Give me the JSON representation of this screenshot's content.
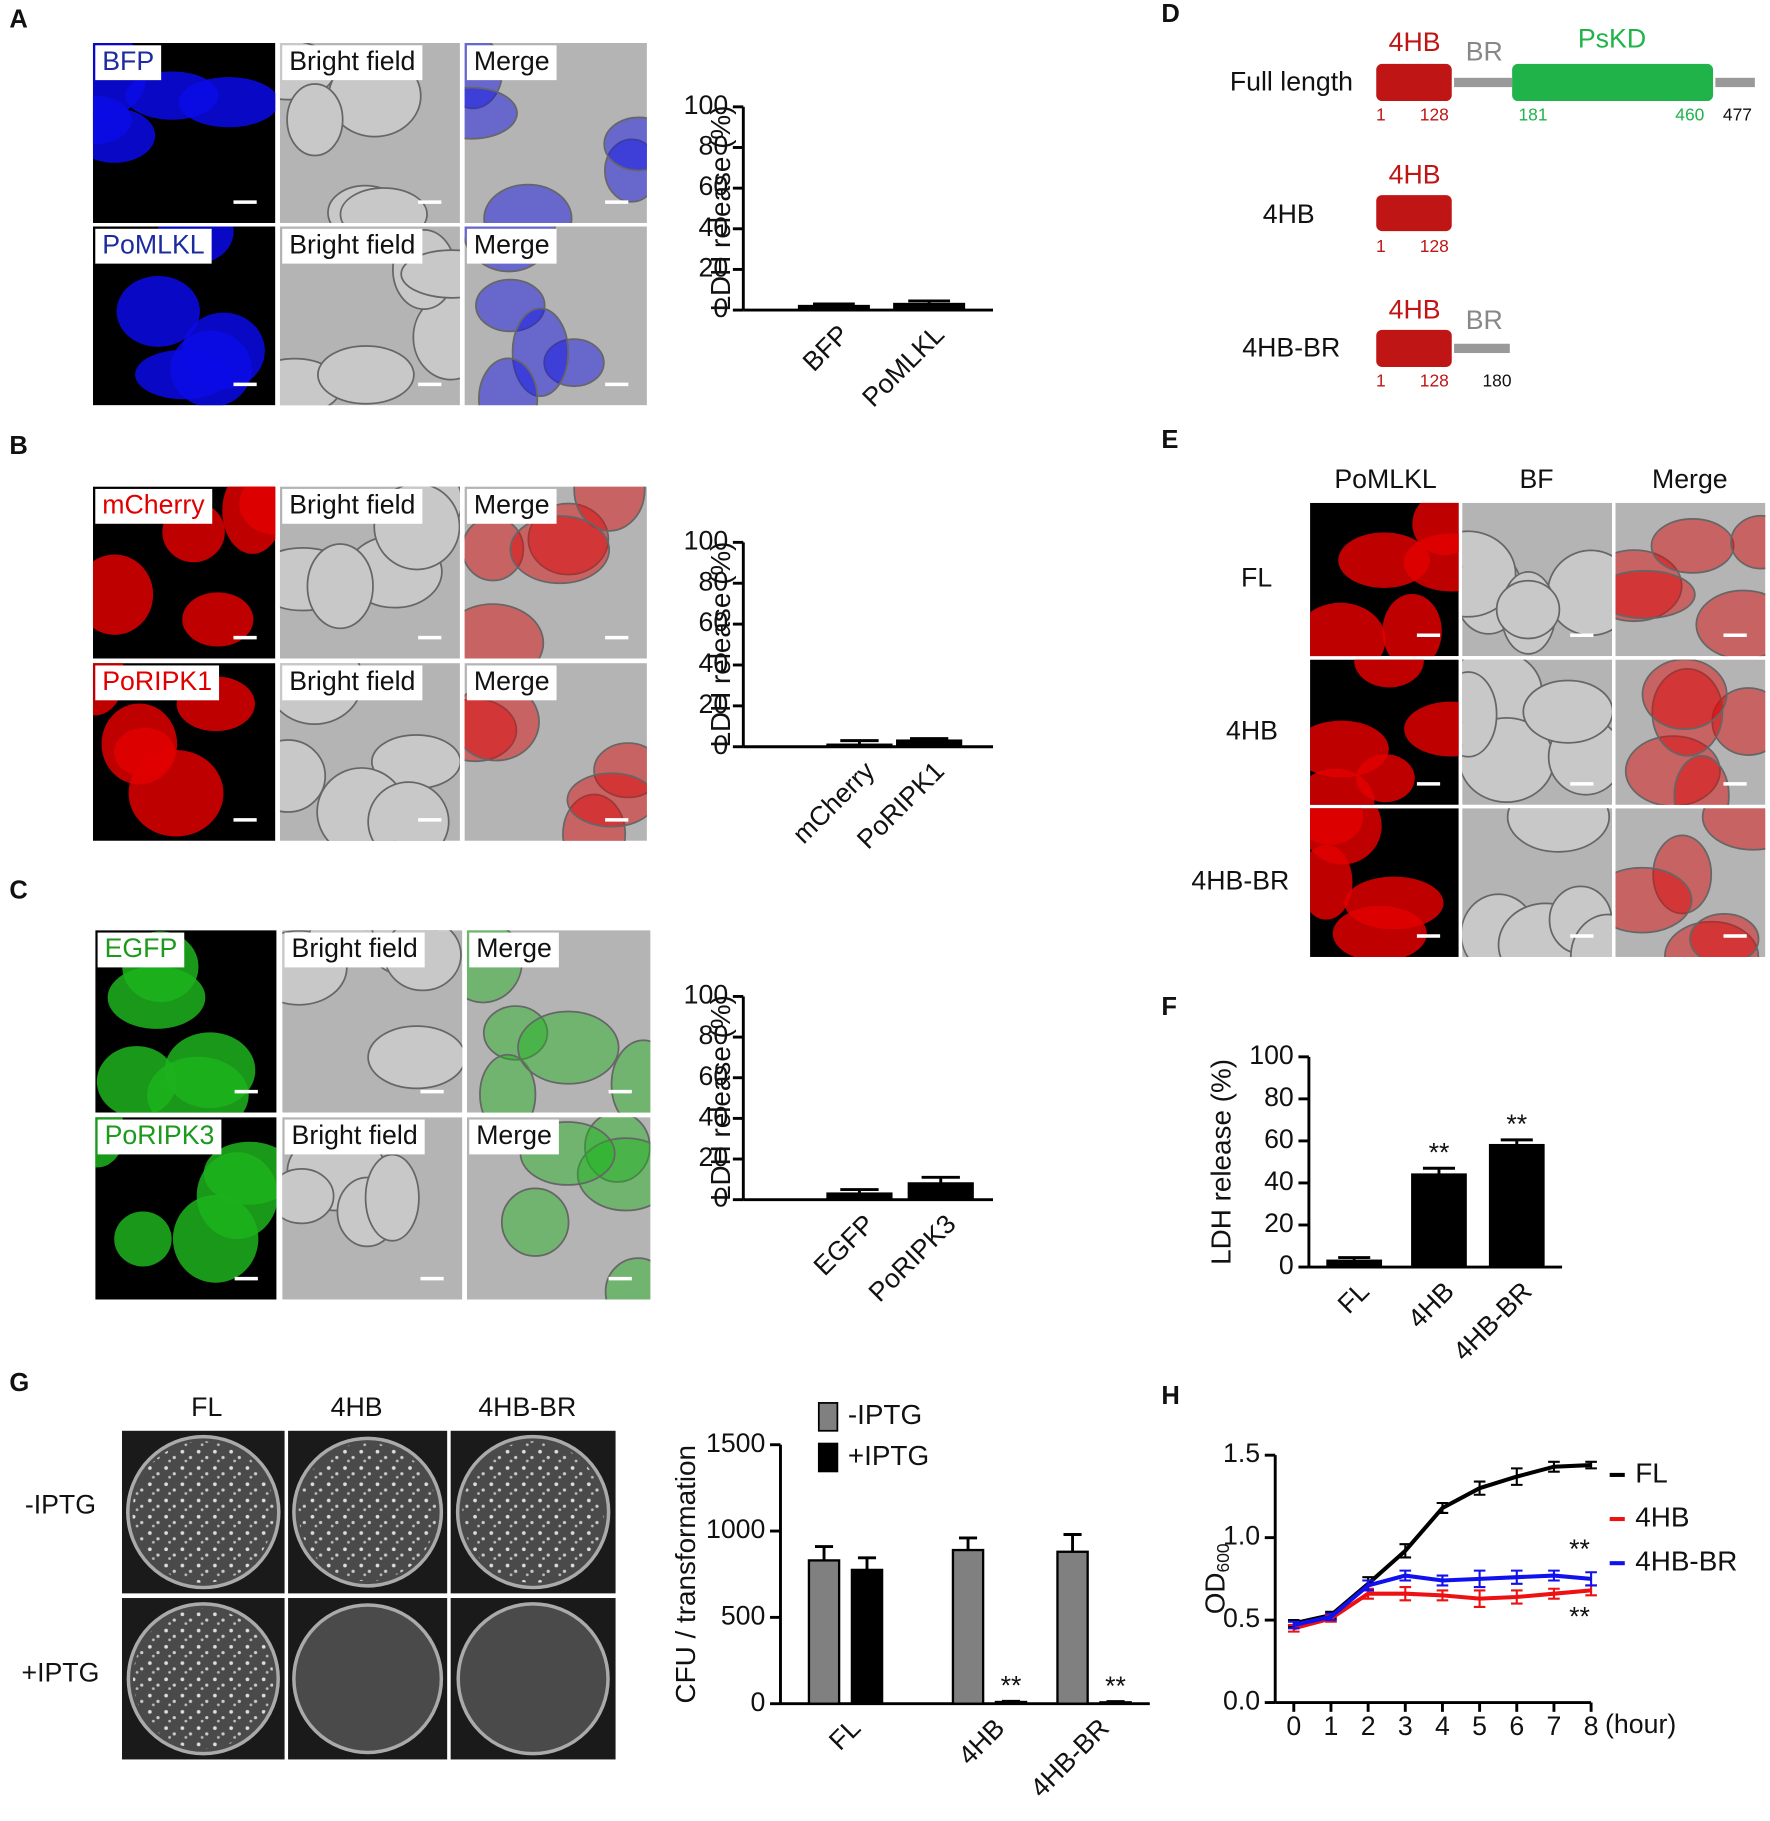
{
  "panel_labels": [
    "A",
    "B",
    "C",
    "D",
    "E",
    "F",
    "G",
    "H"
  ],
  "images": {
    "A": [
      [
        "BFP",
        "Bright field",
        "Merge"
      ],
      [
        "PoMLKL",
        "Bright field",
        "Merge"
      ]
    ],
    "B": [
      [
        "mCherry",
        "Bright field",
        "Merge"
      ],
      [
        "PoRIPK1",
        "Bright field",
        "Merge"
      ]
    ],
    "C": [
      [
        "EGFP",
        "Bright field",
        "Merge"
      ],
      [
        "PoRIPK3",
        "Bright field",
        "Merge"
      ]
    ]
  },
  "diagram": {
    "rows": [
      {
        "label": "Full length",
        "domains": [
          "4HB",
          "BR",
          "PsKD"
        ],
        "numbers": [
          1,
          128,
          181,
          460,
          477
        ]
      },
      {
        "label": "4HB",
        "domains": [
          "4HB"
        ],
        "numbers": [
          1,
          128
        ]
      },
      {
        "label": "4HB-BR",
        "domains": [
          "4HB",
          "BR"
        ],
        "numbers": [
          1,
          128,
          180
        ]
      }
    ]
  },
  "panel_e": {
    "columns": [
      "PoMLKL",
      "BF",
      "Merge"
    ],
    "rows": [
      "FL",
      "4HB",
      "4HB-BR"
    ]
  },
  "panel_g": {
    "columns": [
      "FL",
      "4HB",
      "4HB-BR"
    ],
    "rows": [
      "-IPTG",
      "+IPTG"
    ]
  },
  "chart_data": [
    {
      "type": "bar",
      "categories": [
        "BFP",
        "PoMLKL"
      ],
      "values": [
        2,
        3
      ],
      "errors": [
        1,
        1.5
      ],
      "color": "#000000",
      "ylim": [
        0,
        100
      ],
      "yticks": [
        0,
        20,
        40,
        60,
        80,
        100
      ],
      "ylabel": "LDH release (%)"
    },
    {
      "type": "bar",
      "categories": [
        "mCherry",
        "PoRIPK1"
      ],
      "values": [
        1,
        3
      ],
      "errors": [
        2,
        1
      ],
      "color": "#000000",
      "ylim": [
        0,
        100
      ],
      "yticks": [
        0,
        20,
        40,
        60,
        80,
        100
      ],
      "ylabel": "LDH release (%)"
    },
    {
      "type": "bar",
      "categories": [
        "EGFP",
        "PoRIPK3"
      ],
      "values": [
        3,
        8
      ],
      "errors": [
        2,
        3
      ],
      "color": "#000000",
      "ylim": [
        0,
        100
      ],
      "yticks": [
        0,
        20,
        40,
        60,
        80,
        100
      ],
      "ylabel": "LDH release (%)"
    },
    {
      "type": "bar",
      "categories": [
        "FL",
        "4HB",
        "4HB-BR"
      ],
      "values": [
        3,
        44,
        58
      ],
      "errors": [
        1.5,
        3,
        2.5
      ],
      "color": "#000000",
      "annotations": [
        null,
        "**",
        "**"
      ],
      "ylim": [
        0,
        100
      ],
      "yticks": [
        0,
        20,
        40,
        60,
        80,
        100
      ],
      "ylabel": "LDH release (%)"
    },
    {
      "type": "bar",
      "categories": [
        "FL",
        "4HB",
        "4HB-BR"
      ],
      "series": [
        {
          "name": "-IPTG",
          "color": "#808080",
          "values": [
            830,
            890,
            880
          ],
          "errors": [
            80,
            70,
            100
          ]
        },
        {
          "name": "+IPTG",
          "color": "#000000",
          "values": [
            775,
            10,
            8
          ],
          "errors": [
            70,
            4,
            4
          ],
          "annotations": [
            null,
            "**",
            "**"
          ]
        }
      ],
      "ylim": [
        0,
        1500
      ],
      "yticks": [
        0,
        500,
        1000,
        1500
      ],
      "ylabel": "CFU / transformation"
    },
    {
      "type": "line",
      "x": [
        0,
        1,
        2,
        3,
        4,
        5,
        6,
        7,
        8
      ],
      "xlim": [
        -0.5,
        8
      ],
      "xticks": [
        0,
        1,
        2,
        3,
        4,
        5,
        6,
        7,
        8
      ],
      "xlabel": "(hour)",
      "ylabel": "OD",
      "ylabel_subscript": "600",
      "ylim": [
        0,
        1.5
      ],
      "yticks": [
        {
          "value": 0,
          "label": "0.0"
        },
        0.5,
        {
          "value": 1,
          "label": "1.0"
        },
        1.5
      ],
      "series": [
        {
          "name": "FL",
          "color": "#000000",
          "values": [
            0.48,
            0.53,
            0.72,
            0.92,
            1.18,
            1.3,
            1.37,
            1.43,
            1.44
          ],
          "errors": [
            0.02,
            0.02,
            0.04,
            0.04,
            0.03,
            0.04,
            0.05,
            0.03,
            0.02
          ]
        },
        {
          "name": "4HB",
          "color": "#ee1111",
          "values": [
            0.45,
            0.51,
            0.66,
            0.66,
            0.65,
            0.63,
            0.64,
            0.66,
            0.68
          ],
          "errors": [
            0.02,
            0.02,
            0.03,
            0.04,
            0.03,
            0.05,
            0.04,
            0.03,
            0.03
          ],
          "annotation": "**",
          "annotation_position": "below"
        },
        {
          "name": "4HB-BR",
          "color": "#1111ee",
          "values": [
            0.47,
            0.52,
            0.71,
            0.77,
            0.74,
            0.75,
            0.76,
            0.77,
            0.75
          ],
          "errors": [
            0.02,
            0.02,
            0.03,
            0.03,
            0.03,
            0.05,
            0.04,
            0.03,
            0.04
          ],
          "annotation": "**",
          "annotation_position": "above"
        }
      ]
    }
  ]
}
